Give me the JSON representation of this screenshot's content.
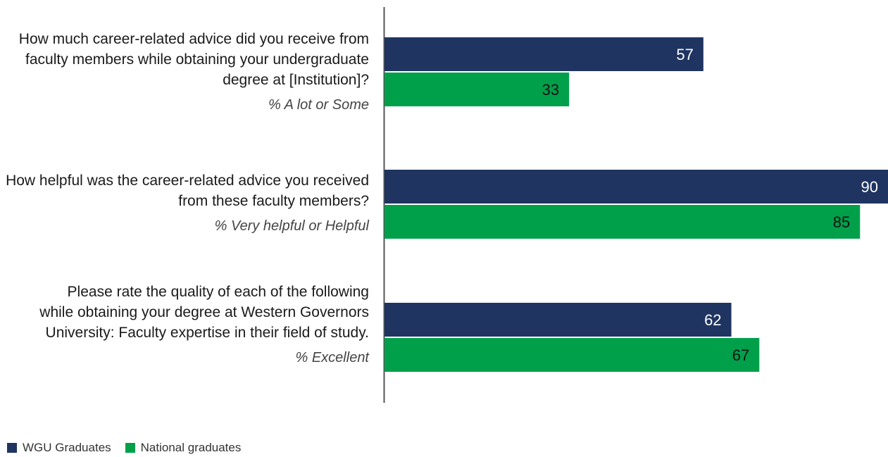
{
  "chart_data": {
    "type": "bar",
    "orientation": "horizontal",
    "categories": [
      {
        "question": "How much career-related advice did you receive from faculty members while obtaining your undergraduate degree at [Institution]?",
        "measure": "% A lot or Some"
      },
      {
        "question": "How helpful was the career-related advice you received from these faculty members?",
        "measure": "% Very helpful or Helpful"
      },
      {
        "question": "Please rate the quality of each of the following while obtaining your degree at Western Governors University: Faculty expertise in their field of study.",
        "measure": "% Excellent"
      }
    ],
    "series": [
      {
        "name": "WGU Graduates",
        "values": [
          57,
          90,
          62
        ],
        "color": "#1f3461",
        "label_color": "#ffffff"
      },
      {
        "name": "National graduates",
        "values": [
          33,
          85,
          67
        ],
        "color": "#00a04b",
        "label_color": "#111111"
      }
    ],
    "xlim": [
      0,
      90
    ],
    "grid": false,
    "legend_position": "bottom-left",
    "axis_line_color": "#555555"
  }
}
